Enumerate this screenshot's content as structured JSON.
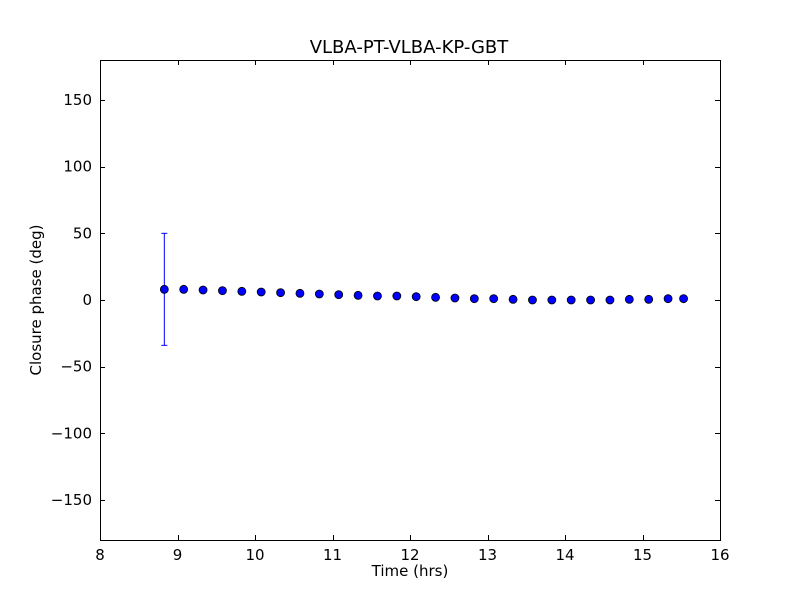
{
  "chart_data": {
    "type": "scatter",
    "title": "VLBA-PT-VLBA-KP-GBT",
    "xlabel": "Time (hrs)",
    "ylabel": "Closure phase (deg)",
    "xlim": [
      8,
      16
    ],
    "ylim": [
      -180,
      180
    ],
    "xticks": [
      8,
      9,
      10,
      11,
      12,
      13,
      14,
      15,
      16
    ],
    "xtick_labels": [
      "8",
      "9",
      "10",
      "11",
      "12",
      "13",
      "14",
      "15",
      "16"
    ],
    "yticks": [
      150,
      100,
      50,
      0,
      -50,
      -100,
      -150
    ],
    "ytick_labels": [
      "150",
      "100",
      "50",
      "0",
      "−50",
      "−100",
      "−150"
    ],
    "grid": false,
    "marker_color": "#0000ff",
    "errorbar_color": "#0000ff",
    "x": [
      8.83,
      9.08,
      9.33,
      9.58,
      9.83,
      10.08,
      10.33,
      10.58,
      10.83,
      11.08,
      11.33,
      11.58,
      11.83,
      12.08,
      12.33,
      12.58,
      12.83,
      13.08,
      13.33,
      13.58,
      13.83,
      14.08,
      14.33,
      14.58,
      14.83,
      15.08,
      15.33,
      15.53
    ],
    "y": [
      8,
      8,
      7.5,
      7,
      6.5,
      6,
      5.5,
      5,
      4.5,
      4,
      3.5,
      3,
      3,
      2.5,
      2,
      1.5,
      1,
      1,
      0.5,
      0,
      0,
      0,
      0,
      0,
      0.5,
      0.5,
      1,
      1
    ],
    "yerr": [
      42,
      0,
      0,
      0,
      0,
      0,
      0,
      0,
      0,
      0,
      0,
      0,
      0,
      0,
      0,
      0,
      0,
      0,
      0,
      0,
      0,
      0,
      0,
      0,
      0,
      0,
      0,
      0
    ]
  }
}
